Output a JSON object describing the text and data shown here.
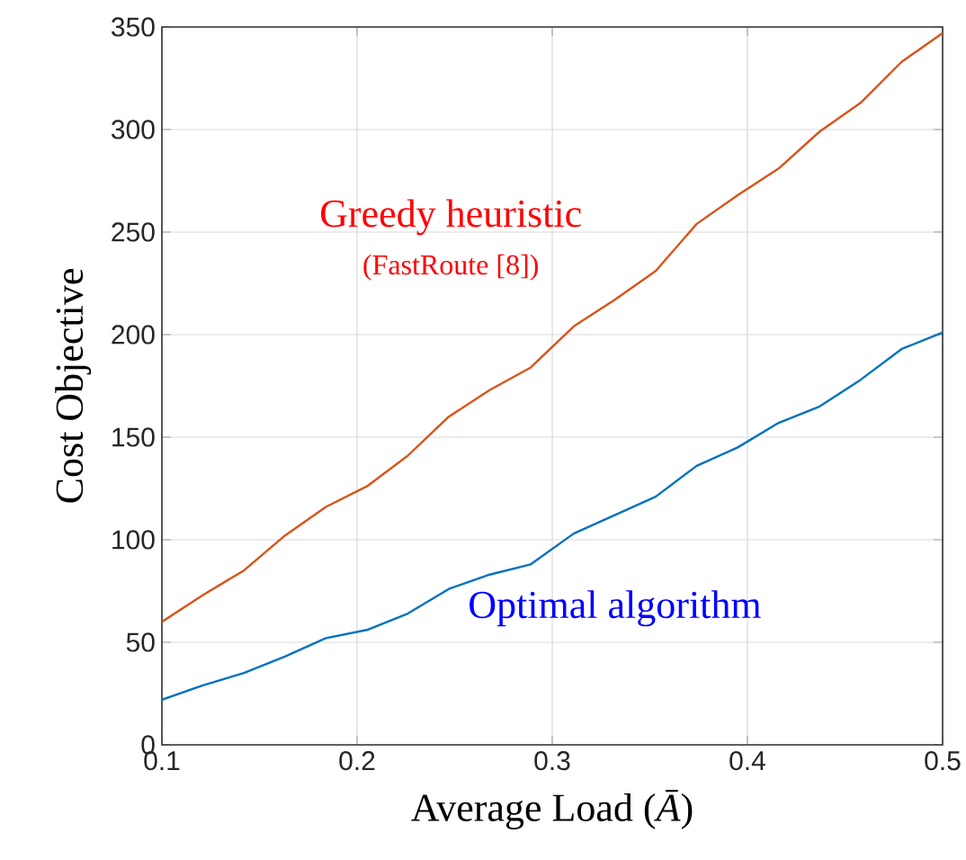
{
  "chart_data": {
    "type": "line",
    "xlabel": "Average Load (*Ā*)",
    "ylabel": "Cost Objective",
    "x": [
      0.1,
      0.121,
      0.142,
      0.163,
      0.184,
      0.205,
      0.226,
      0.247,
      0.268,
      0.289,
      0.311,
      0.332,
      0.353,
      0.374,
      0.395,
      0.416,
      0.437,
      0.458,
      0.479,
      0.5
    ],
    "series": [
      {
        "name": "Greedy heuristic",
        "color": "#d95319",
        "values": [
          60,
          73,
          85,
          102,
          116,
          126,
          141,
          160,
          173,
          184,
          204,
          217,
          231,
          254,
          268,
          281,
          299,
          313,
          333,
          347
        ]
      },
      {
        "name": "Optimal algorithm",
        "color": "#0072bd",
        "values": [
          22,
          29,
          35,
          43,
          52,
          56,
          64,
          76,
          83,
          88,
          103,
          112,
          121,
          136,
          145,
          157,
          165,
          178,
          193,
          201
        ]
      }
    ],
    "annotations": [
      "(FastRoute [8])"
    ],
    "xlim": [
      0.1,
      0.5
    ],
    "ylim": [
      0,
      350
    ],
    "xticks": [
      0.1,
      0.2,
      0.3,
      0.4,
      0.5
    ],
    "yticks": [
      0,
      50,
      100,
      150,
      200,
      250,
      300,
      350
    ],
    "grid": true,
    "marker": "none",
    "line_style": "solid"
  }
}
